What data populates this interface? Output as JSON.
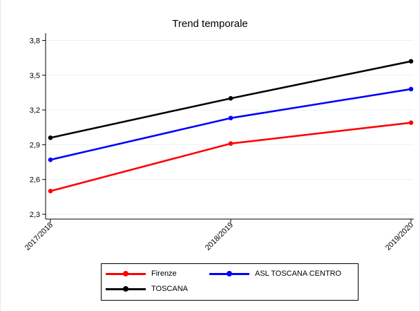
{
  "chart_data": {
    "type": "line",
    "title": "Trend temporale",
    "xlabel": "",
    "ylabel": "",
    "categories": [
      "2017/2018",
      "2018/2019",
      "2019/2020"
    ],
    "ylim": [
      2.3,
      3.8
    ],
    "yticks": [
      2.3,
      2.6,
      2.9,
      3.2,
      3.5,
      3.8
    ],
    "ytick_labels": [
      "2,3",
      "2,6",
      "2,9",
      "3,2",
      "3,5",
      "3,8"
    ],
    "grid": true,
    "legend_position": "bottom",
    "series": [
      {
        "name": "Firenze",
        "color": "#ff0000",
        "values": [
          2.5,
          2.91,
          3.09
        ]
      },
      {
        "name": "ASL TOSCANA CENTRO",
        "color": "#0000ff",
        "values": [
          2.77,
          3.13,
          3.38
        ]
      },
      {
        "name": "TOSCANA",
        "color": "#000000",
        "values": [
          2.96,
          3.3,
          3.62
        ]
      }
    ]
  }
}
